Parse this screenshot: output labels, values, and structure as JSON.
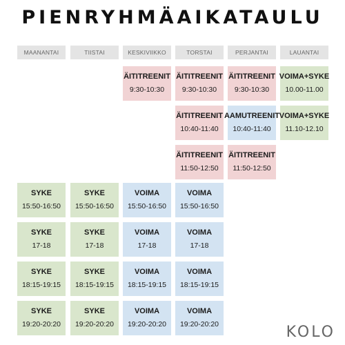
{
  "title": "PIENRYHMÄAIKATAULU",
  "brand": "KOLO",
  "colors": {
    "pink": "#f1d3d4",
    "green": "#d9e6cc",
    "blue": "#d3e3f2",
    "header": "#e4e4e4"
  },
  "days": [
    "MAANANTAI",
    "TIISTAI",
    "KESKIVIIKKO",
    "TORSTAI",
    "PERJANTAI",
    "LAUANTAI"
  ],
  "sessions": [
    {
      "day": 2,
      "row": 0,
      "name": "ÄITITREENIT",
      "time": "9:30-10:30",
      "color": "pink"
    },
    {
      "day": 3,
      "row": 0,
      "name": "ÄITITREENIT",
      "time": "9:30-10:30",
      "color": "pink"
    },
    {
      "day": 4,
      "row": 0,
      "name": "ÄITITREENIT",
      "time": "9:30-10:30",
      "color": "pink"
    },
    {
      "day": 5,
      "row": 0,
      "name": "VOIMA+SYKE",
      "time": "10.00-11.00",
      "color": "green"
    },
    {
      "day": 3,
      "row": 1,
      "name": "ÄITITREENIT",
      "time": "10:40-11:40",
      "color": "pink"
    },
    {
      "day": 4,
      "row": 1,
      "name": "AAMUTREENIT",
      "time": "10:40-11:40",
      "color": "blue"
    },
    {
      "day": 5,
      "row": 1,
      "name": "VOIMA+SYKE",
      "time": "11.10-12.10",
      "color": "green"
    },
    {
      "day": 3,
      "row": 2,
      "name": "ÄITITREENIT",
      "time": "11:50-12:50",
      "color": "pink"
    },
    {
      "day": 4,
      "row": 2,
      "name": "ÄITITREENIT",
      "time": "11:50-12:50",
      "color": "pink"
    },
    {
      "day": 0,
      "row": 3,
      "name": "SYKE",
      "time": "15:50-16:50",
      "color": "green"
    },
    {
      "day": 1,
      "row": 3,
      "name": "SYKE",
      "time": "15:50-16:50",
      "color": "green"
    },
    {
      "day": 2,
      "row": 3,
      "name": "VOIMA",
      "time": "15:50-16:50",
      "color": "blue"
    },
    {
      "day": 3,
      "row": 3,
      "name": "VOIMA",
      "time": "15:50-16:50",
      "color": "blue"
    },
    {
      "day": 0,
      "row": 4,
      "name": "SYKE",
      "time": "17-18",
      "color": "green"
    },
    {
      "day": 1,
      "row": 4,
      "name": "SYKE",
      "time": "17-18",
      "color": "green"
    },
    {
      "day": 2,
      "row": 4,
      "name": "VOIMA",
      "time": "17-18",
      "color": "blue"
    },
    {
      "day": 3,
      "row": 4,
      "name": "VOIMA",
      "time": "17-18",
      "color": "blue"
    },
    {
      "day": 0,
      "row": 5,
      "name": "SYKE",
      "time": "18:15-19:15",
      "color": "green"
    },
    {
      "day": 1,
      "row": 5,
      "name": "SYKE",
      "time": "18:15-19:15",
      "color": "green"
    },
    {
      "day": 2,
      "row": 5,
      "name": "VOIMA",
      "time": "18:15-19:15",
      "color": "blue"
    },
    {
      "day": 3,
      "row": 5,
      "name": "VOIMA",
      "time": "18:15-19:15",
      "color": "blue"
    },
    {
      "day": 0,
      "row": 6,
      "name": "SYKE",
      "time": "19:20-20:20",
      "color": "green"
    },
    {
      "day": 1,
      "row": 6,
      "name": "SYKE",
      "time": "19:20-20:20",
      "color": "green"
    },
    {
      "day": 2,
      "row": 6,
      "name": "VOIMA",
      "time": "19:20-20:20",
      "color": "blue"
    },
    {
      "day": 3,
      "row": 6,
      "name": "VOIMA",
      "time": "19:20-20:20",
      "color": "blue"
    }
  ]
}
